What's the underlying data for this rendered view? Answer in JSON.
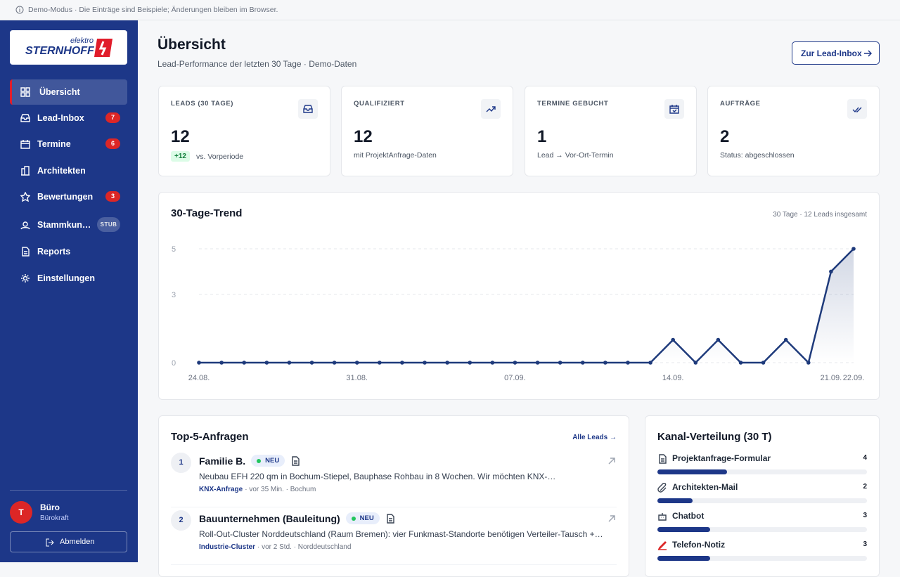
{
  "banner": "Demo-Modus · Die Einträge sind Beispiele; Änderungen bleiben im Browser.",
  "brand": {
    "small": "elektro",
    "name": "STERNHOFF"
  },
  "nav": [
    {
      "label": "Übersicht"
    },
    {
      "label": "Lead-Inbox",
      "badge": 7
    },
    {
      "label": "Termine",
      "badge": 6
    },
    {
      "label": "Architekten"
    },
    {
      "label": "Bewertungen",
      "badge": 3
    },
    {
      "label": "Stammkun…",
      "tag": "STUB"
    },
    {
      "label": "Reports"
    },
    {
      "label": "Einstellungen"
    }
  ],
  "user": {
    "initial": "T",
    "name": "Büro",
    "role": "Bürokraft",
    "logout": "Abmelden"
  },
  "header": {
    "title": "Übersicht",
    "subtitle": "Lead-Performance der letzten 30 Tage · Demo-Daten",
    "button": "Zur Lead-Inbox"
  },
  "kpis": [
    {
      "label": "LEADS (30 TAGE)",
      "value": 12,
      "delta": "+12",
      "note": "vs. Vorperiode"
    },
    {
      "label": "QUALIFIZIERT",
      "value": 12,
      "note": "mit ProjektAnfrage-Daten"
    },
    {
      "label": "TERMINE GEBUCHT",
      "value": 1,
      "note": "Lead → Vor-Ort-Termin"
    },
    {
      "label": "AUFTRÄGE",
      "value": 2,
      "note": "Status: abgeschlossen"
    }
  ],
  "trend": {
    "type": "line",
    "title": "30-Tage-Trend",
    "meta": "30 Tage · 12 Leads insgesamt",
    "categories": [
      "24.08.",
      null,
      null,
      null,
      null,
      null,
      null,
      "31.08.",
      null,
      null,
      null,
      null,
      null,
      null,
      "07.09.",
      null,
      null,
      null,
      null,
      null,
      null,
      "14.09.",
      null,
      null,
      null,
      null,
      null,
      null,
      "21.09.",
      "22.09."
    ],
    "values": [
      0,
      0,
      0,
      0,
      0,
      0,
      0,
      0,
      0,
      0,
      0,
      0,
      0,
      0,
      0,
      0,
      0,
      0,
      0,
      0,
      0,
      1,
      0,
      1,
      0,
      0,
      1,
      0,
      4,
      5
    ],
    "ylim": [
      0,
      5
    ],
    "yticks": [
      0,
      3,
      5
    ],
    "color": "#1e3a7b",
    "grid": true
  },
  "top": {
    "title": "Top-5-Anfragen",
    "link": "Alle Leads →",
    "items": [
      {
        "rank": 1,
        "name": "Familie B.",
        "status": "NEU",
        "text": "Neubau EFH 220 qm in Bochum-Stiepel, Bauphase Rohbau in 8 Wochen. Wir möchten KNX-…",
        "tag": "KNX-Anfrage",
        "meta": "· vor 35 Min. · Bochum"
      },
      {
        "rank": 2,
        "name": "Bauunternehmen (Bauleitung)",
        "status": "NEU",
        "text": "Roll-Out-Cluster Norddeutschland (Raum Bremen): vier Funkmast-Standorte benötigen Verteiler-Tausch +…",
        "tag": "Industrie-Cluster",
        "meta": "· vor 2 Std. · Norddeutschland"
      }
    ]
  },
  "channels": {
    "title": "Kanal-Verteilung (30 T)",
    "items": [
      {
        "label": "Projektanfrage-Formular",
        "value": 4
      },
      {
        "label": "Architekten-Mail",
        "value": 2
      },
      {
        "label": "Chatbot",
        "value": 3
      },
      {
        "label": "Telefon-Notiz",
        "value": 3
      }
    ]
  }
}
